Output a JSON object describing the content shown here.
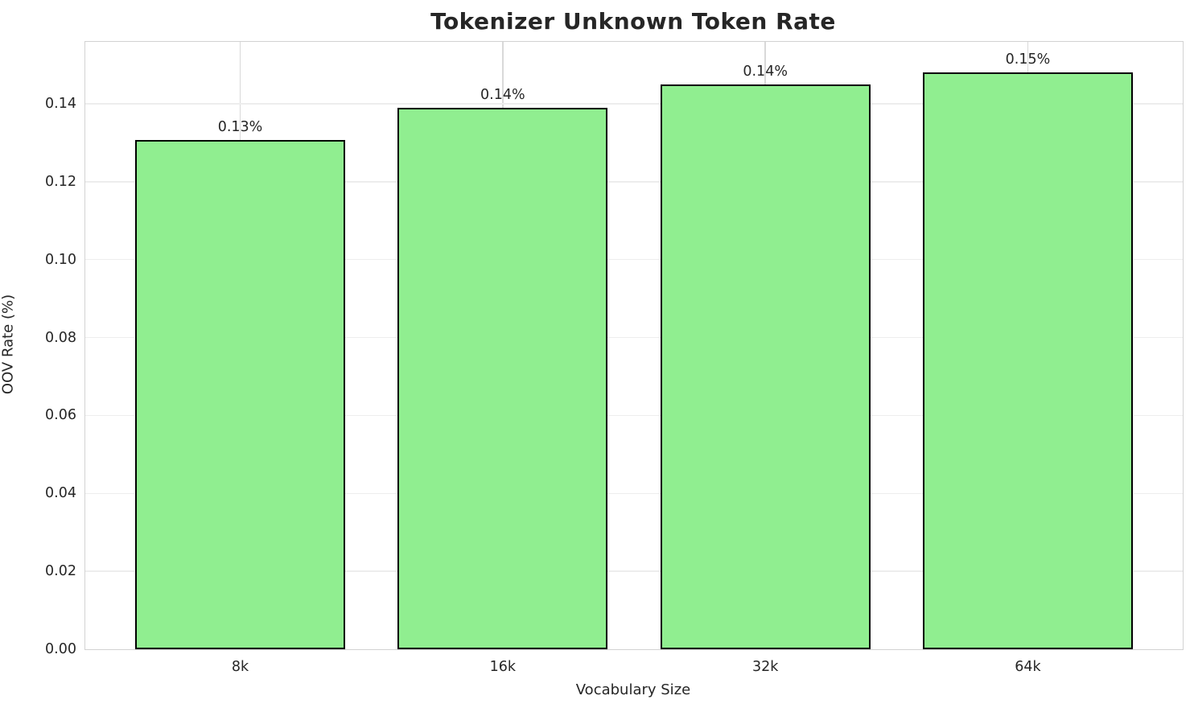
{
  "chart_data": {
    "type": "bar",
    "title": "Tokenizer Unknown Token Rate",
    "xlabel": "Vocabulary Size",
    "ylabel": "OOV Rate (%)",
    "categories": [
      "8k",
      "16k",
      "32k",
      "64k"
    ],
    "values": [
      0.1307,
      0.139,
      0.145,
      0.148
    ],
    "bar_labels": [
      "0.13%",
      "0.14%",
      "0.14%",
      "0.15%"
    ],
    "yticks": [
      0.0,
      0.02,
      0.04,
      0.06,
      0.08,
      0.1,
      0.12,
      0.14
    ],
    "ytick_labels": [
      "0.00",
      "0.02",
      "0.04",
      "0.06",
      "0.08",
      "0.10",
      "0.12",
      "0.14"
    ],
    "ylim": [
      0,
      0.1559
    ],
    "grid": "both",
    "legend_position": "none",
    "bar_color": "#90EE90",
    "bar_edge_color": "#000000",
    "text_color": "#262626"
  }
}
